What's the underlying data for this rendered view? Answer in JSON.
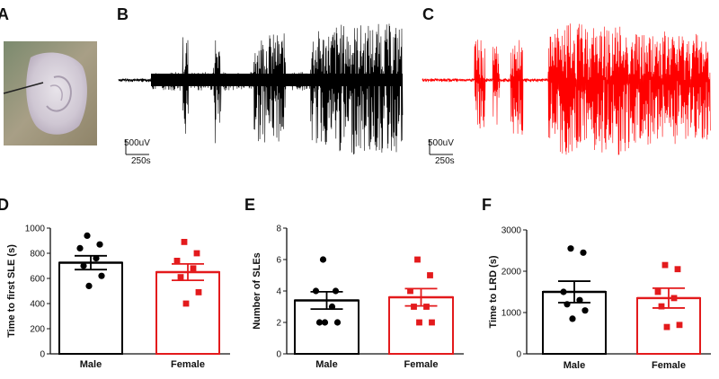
{
  "panels": {
    "A": {
      "letter": "A",
      "image": "brain-slice-photo-with-electrode"
    },
    "B": {
      "letter": "B",
      "trace_color": "#000000",
      "scale_voltage": "500uV",
      "scale_time": "250s"
    },
    "C": {
      "letter": "C",
      "trace_color": "#ff0000",
      "scale_voltage": "500uV",
      "scale_time": "250s"
    },
    "D": {
      "letter": "D"
    },
    "E": {
      "letter": "E"
    },
    "F": {
      "letter": "F"
    }
  },
  "colors": {
    "male": "#000000",
    "female": "#e31a1c"
  },
  "chart_data": [
    {
      "panel": "D",
      "type": "bar",
      "categories": [
        "Male",
        "Female"
      ],
      "ylabel": "Time to first SLE (s)",
      "ylim": [
        0,
        1000
      ],
      "yticks": [
        "0",
        "200",
        "400",
        "600",
        "800",
        "1000"
      ],
      "values": [
        725,
        650
      ],
      "sem": [
        55,
        65
      ],
      "points": [
        [
          940,
          870,
          840,
          760,
          700,
          620,
          540
        ],
        [
          890,
          800,
          740,
          680,
          610,
          490,
          400
        ]
      ]
    },
    {
      "panel": "E",
      "type": "bar",
      "categories": [
        "Male",
        "Female"
      ],
      "ylabel": "Number of SLEs",
      "ylim": [
        0,
        8
      ],
      "yticks": [
        "0",
        "2",
        "4",
        "6",
        "8"
      ],
      "values": [
        3.4,
        3.6
      ],
      "sem": [
        0.55,
        0.55
      ],
      "points": [
        [
          6,
          4,
          4,
          3,
          2,
          2,
          2
        ],
        [
          6,
          5,
          4,
          3,
          3,
          2,
          2
        ]
      ]
    },
    {
      "panel": "F",
      "type": "bar",
      "categories": [
        "Male",
        "Female"
      ],
      "ylabel": "Time to LRD (s)",
      "ylim": [
        0,
        3000
      ],
      "yticks": [
        "0",
        "1000",
        "2000",
        "3000"
      ],
      "values": [
        1500,
        1350
      ],
      "sem": [
        260,
        240
      ],
      "points": [
        [
          2550,
          2450,
          1500,
          1300,
          1200,
          1050,
          850
        ],
        [
          2150,
          2050,
          1500,
          1350,
          1150,
          700,
          650
        ]
      ]
    }
  ]
}
